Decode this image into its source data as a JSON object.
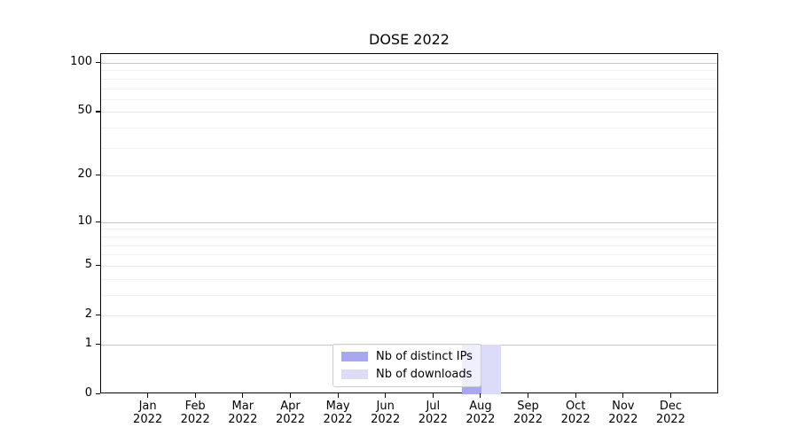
{
  "chart_data": {
    "type": "bar",
    "title": "DOSE 2022",
    "categories": [
      "Jan 2022",
      "Feb 2022",
      "Mar 2022",
      "Apr 2022",
      "May 2022",
      "Jun 2022",
      "Jul 2022",
      "Aug 2022",
      "Sep 2022",
      "Oct 2022",
      "Nov 2022",
      "Dec 2022"
    ],
    "series": [
      {
        "name": "Nb of distinct IPs",
        "color": "#a8a8f0",
        "values": [
          0,
          0,
          0,
          0,
          0,
          0,
          0,
          1,
          0,
          0,
          0,
          0
        ]
      },
      {
        "name": "Nb of downloads",
        "color": "#dcdcf8",
        "values": [
          0,
          0,
          0,
          0,
          0,
          0,
          0,
          1,
          0,
          0,
          0,
          0
        ]
      }
    ],
    "xlabel": "",
    "ylabel": "",
    "yscale": "log1p",
    "ylim": [
      0,
      113
    ],
    "yticks": [
      0,
      1,
      2,
      5,
      10,
      20,
      50,
      100
    ],
    "minor_yticks": [
      3,
      4,
      6,
      7,
      8,
      9,
      30,
      40,
      60,
      70,
      80,
      90
    ],
    "major_gridline_values": [
      1,
      10,
      100
    ],
    "grid": true,
    "legend_position": "lower center"
  },
  "colors": {
    "major_grid": "#c6c6c6",
    "mid_grid": "#e8e8e8",
    "minor_grid": "#f0f0f0",
    "axis": "#000000",
    "legend_border": "#cccccc",
    "background": "#ffffff"
  }
}
